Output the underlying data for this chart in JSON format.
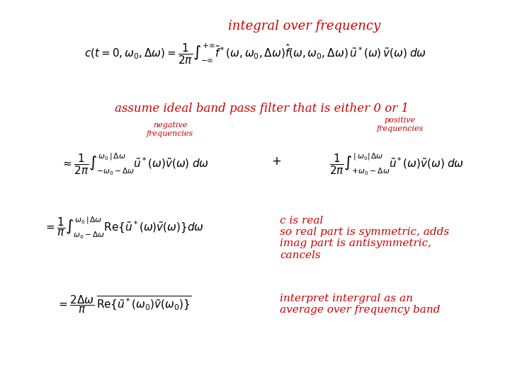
{
  "background_color": "#ffffff",
  "title_text": "integral over frequency",
  "title_color": "#cc0000",
  "title_fontsize": 13,
  "eq1_color": "#000000",
  "assume_text": "assume ideal band pass filter that is either 0 or 1",
  "assume_color": "#cc0000",
  "assume_fontsize": 12,
  "neg_color": "#cc0000",
  "pos_color": "#cc0000",
  "eq_color": "#000000",
  "note1_line1": "c is real",
  "note1_line2": "so real part is symmetric, adds",
  "note1_line3": "imag part is antisymmetric,",
  "note1_line4": "cancels",
  "note1_color": "#cc0000",
  "note2_line1": "interpret intergral as an",
  "note2_line2": "average over frequency band",
  "note2_color": "#cc0000",
  "fs_eq": 11,
  "fs_note": 11,
  "fs_small": 8
}
